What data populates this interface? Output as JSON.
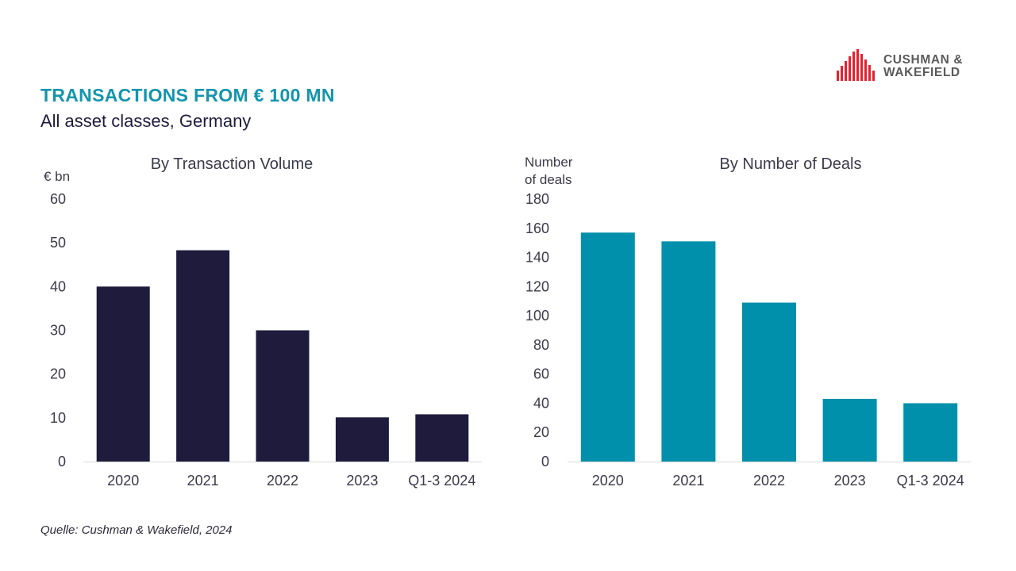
{
  "header": {
    "title": "TRANSACTIONS FROM € 100 MN",
    "subtitle": "All asset classes, Germany"
  },
  "logo": {
    "line1": "CUSHMAN &",
    "line2": "WAKEFIELD",
    "color": "#e4222e"
  },
  "source": "Quelle: Cushman & Wakefield, 2024",
  "chart_data": [
    {
      "type": "bar",
      "title": "By Transaction Volume",
      "ylabel": "€ bn",
      "categories": [
        "2020",
        "2021",
        "2022",
        "2023",
        "Q1-3 2024"
      ],
      "series": [
        {
          "values": [
            40,
            48.3,
            30,
            10.1,
            10.8
          ]
        }
      ],
      "ylim": [
        0,
        60
      ],
      "yticks": [
        0,
        10,
        20,
        30,
        40,
        50,
        60
      ],
      "color": "#1f1b3d",
      "grid": false
    },
    {
      "type": "bar",
      "title": "By Number of Deals",
      "ylabel": "Number of deals",
      "ylabel_lines": [
        "Number",
        "of deals"
      ],
      "categories": [
        "2020",
        "2021",
        "2022",
        "2023",
        "Q1-3 2024"
      ],
      "series": [
        {
          "values": [
            157,
            151,
            109,
            43,
            40
          ]
        }
      ],
      "ylim": [
        0,
        180
      ],
      "yticks": [
        0,
        20,
        40,
        60,
        80,
        100,
        120,
        140,
        160,
        180
      ],
      "color": "#0090ab",
      "grid": false
    }
  ]
}
